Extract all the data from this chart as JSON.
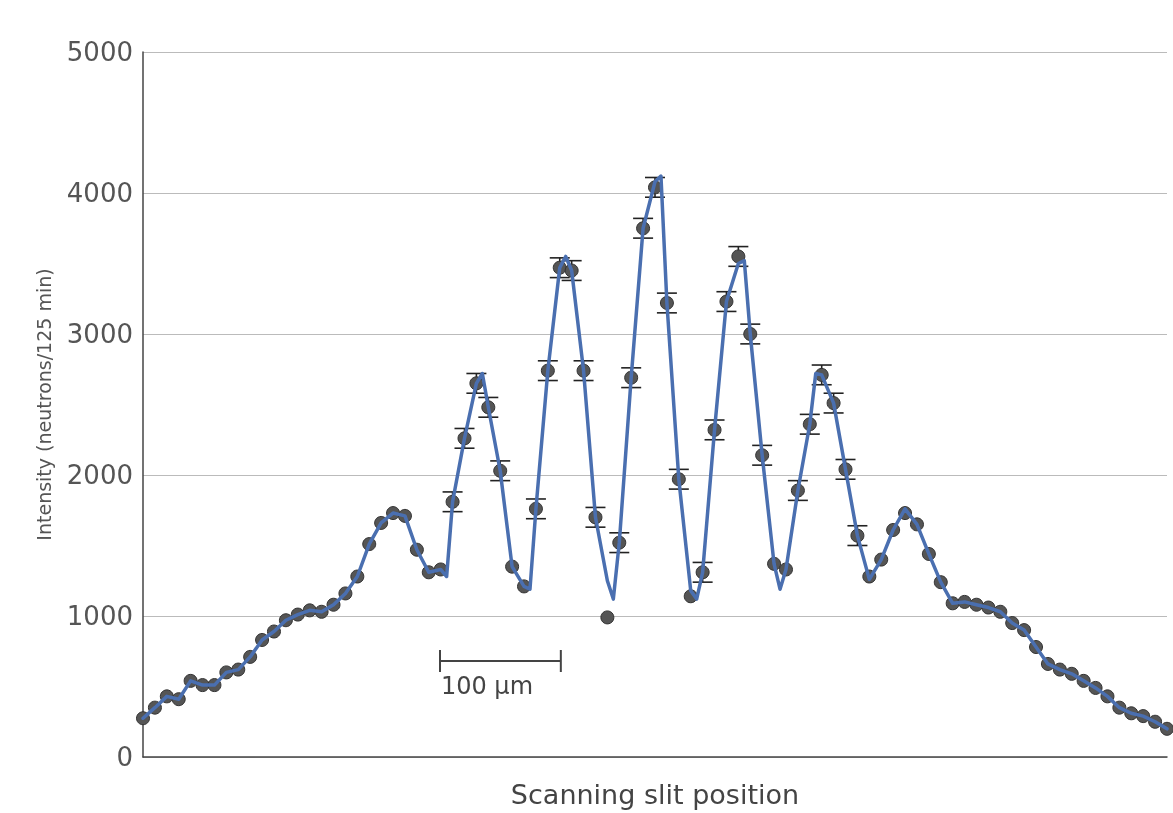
{
  "chart_data": {
    "type": "line",
    "xlabel": "Scanning slit position",
    "ylabel": "Intensity (neutrons/125 min)",
    "annotations": [
      "100 μm"
    ],
    "categories": [
      null,
      null,
      null,
      null,
      null,
      null,
      null,
      null,
      null,
      null,
      null,
      null,
      null,
      null,
      null,
      null,
      null,
      null,
      null,
      null,
      null,
      null,
      null,
      null,
      null,
      null,
      null,
      null,
      null,
      null,
      null,
      null,
      null,
      null,
      null,
      null,
      null,
      null,
      null,
      null,
      null,
      null,
      null,
      null,
      null,
      null,
      null,
      null,
      null,
      null,
      null,
      null,
      null,
      null,
      null,
      null,
      null,
      null,
      null,
      null,
      null,
      null,
      null,
      null,
      null,
      null,
      null,
      null,
      null,
      null,
      null,
      null,
      null,
      null,
      null,
      null,
      null,
      null,
      null,
      null,
      null,
      null,
      null,
      null,
      null,
      null,
      null,
      null,
      null,
      null,
      null,
      null,
      null,
      null,
      null,
      null,
      null,
      null,
      null,
      null,
      null,
      null,
      null,
      null,
      null,
      null,
      null,
      null,
      null,
      null,
      null,
      null,
      null,
      null,
      null,
      null,
      null,
      null,
      null,
      null,
      null,
      null,
      null,
      null,
      null,
      null,
      null,
      null,
      null,
      null,
      null,
      null,
      null,
      null,
      null,
      null,
      null,
      null,
      null,
      null,
      null,
      null,
      null,
      null,
      null,
      null,
      null,
      null,
      null,
      null,
      null,
      null,
      null,
      null,
      null,
      null,
      null,
      null,
      null,
      null,
      null,
      null,
      null,
      null,
      null,
      null,
      null,
      null,
      null,
      null,
      null,
      null,
      null
    ],
    "ylim": [
      0,
      5000
    ],
    "yticks": [
      0,
      1000,
      2000,
      3000,
      4000,
      5000
    ],
    "tick_labels": "y",
    "grid": "y",
    "series": [
      {
        "type": "scatter",
        "color": "#555555",
        "marker": "circle",
        "values": [
          275,
          null,
          350,
          null,
          430,
          null,
          410,
          null,
          540,
          null,
          510,
          null,
          510,
          null,
          600,
          null,
          620,
          null,
          710,
          null,
          830,
          null,
          890,
          null,
          970,
          null,
          1010,
          null,
          1040,
          null,
          1030,
          null,
          1080,
          null,
          1160,
          null,
          1280,
          null,
          1510,
          null,
          1660,
          null,
          1730,
          null,
          1710,
          null,
          1470,
          null,
          1310,
          null,
          1330,
          null,
          1810,
          null,
          2260,
          null,
          2650,
          null,
          2480,
          null,
          2030,
          null,
          1350,
          null,
          1210,
          null,
          1760,
          null,
          2740,
          null,
          3470,
          null,
          3450,
          null,
          2740,
          null,
          1700,
          null,
          990,
          null,
          1520,
          null,
          2690,
          null,
          3750,
          null,
          4040,
          null,
          3220,
          null,
          1970,
          null,
          1140,
          null,
          1310,
          null,
          2320,
          null,
          3230,
          null,
          3550,
          null,
          3000,
          null,
          2140,
          null,
          1370,
          null,
          1330,
          null,
          1890,
          null,
          2360,
          null,
          2710,
          null,
          2510,
          null,
          2040,
          null,
          1570,
          null,
          1280,
          null,
          1400,
          null,
          1610,
          null,
          1730,
          null,
          1650,
          null,
          1440,
          null,
          1240,
          null,
          1090,
          null,
          1100,
          null,
          1080,
          null,
          1060,
          null,
          1030,
          null,
          950,
          null,
          900,
          null,
          780,
          null,
          660,
          null,
          620,
          null,
          590,
          null,
          540,
          null,
          490,
          null,
          430,
          null,
          350,
          null,
          310,
          null,
          290,
          null,
          250,
          null,
          200
        ],
        "errors": [
          null,
          null,
          null,
          null,
          null,
          null,
          null,
          null,
          null,
          null,
          null,
          null,
          null,
          null,
          null,
          null,
          null,
          null,
          null,
          null,
          null,
          null,
          null,
          null,
          null,
          null,
          null,
          null,
          null,
          null,
          null,
          null,
          null,
          null,
          null,
          null,
          null,
          null,
          null,
          null,
          null,
          null,
          null,
          null,
          null,
          null,
          null,
          null,
          null,
          null,
          null,
          null,
          70,
          null,
          70,
          null,
          70,
          null,
          70,
          null,
          70,
          null,
          null,
          null,
          null,
          null,
          70,
          null,
          70,
          null,
          70,
          null,
          70,
          null,
          70,
          null,
          70,
          null,
          null,
          null,
          70,
          null,
          70,
          null,
          70,
          null,
          70,
          null,
          70,
          null,
          70,
          null,
          null,
          null,
          70,
          null,
          70,
          null,
          70,
          null,
          70,
          null,
          70,
          null,
          70,
          null,
          null,
          null,
          null,
          null,
          70,
          null,
          70,
          null,
          70,
          null,
          70,
          null,
          70,
          null,
          70,
          null,
          null,
          null,
          null,
          null,
          null,
          null,
          null,
          null,
          null,
          null,
          null,
          null,
          null,
          null,
          null,
          null,
          null,
          null,
          null,
          null,
          null,
          null,
          null,
          null,
          null,
          null,
          null,
          null,
          null,
          null,
          null,
          null,
          null,
          null,
          null,
          null,
          null,
          null,
          null,
          null,
          null,
          null,
          null,
          null,
          null,
          null,
          null,
          null,
          null,
          null,
          null
        ]
      },
      {
        "color": "#4a6fb0",
        "marker": "none",
        "line_style": "solid",
        "values": [
          275,
          null,
          350,
          null,
          430,
          null,
          410,
          null,
          540,
          null,
          510,
          null,
          510,
          null,
          600,
          null,
          620,
          null,
          710,
          null,
          830,
          null,
          890,
          null,
          970,
          null,
          1010,
          null,
          1040,
          null,
          1030,
          null,
          1080,
          null,
          1160,
          null,
          1280,
          null,
          1510,
          null,
          1660,
          null,
          1730,
          null,
          1710,
          null,
          1470,
          null,
          1310,
          null,
          1330,
          1280,
          1810,
          null,
          2260,
          null,
          2650,
          2720,
          2480,
          null,
          2030,
          null,
          1350,
          null,
          1210,
          1190,
          1760,
          null,
          2740,
          null,
          3470,
          3550,
          3450,
          null,
          2740,
          null,
          1700,
          null,
          1250,
          1120,
          1520,
          null,
          2690,
          null,
          3750,
          null,
          4080,
          4120,
          3220,
          null,
          1970,
          null,
          1180,
          1120,
          1310,
          null,
          2320,
          null,
          3230,
          null,
          3500,
          3520,
          3000,
          null,
          2140,
          null,
          1370,
          1190,
          1330,
          null,
          1890,
          null,
          2360,
          2720,
          2710,
          null,
          2510,
          null,
          2040,
          null,
          1570,
          null,
          1260,
          null,
          1400,
          null,
          1610,
          null,
          1760,
          null,
          1650,
          null,
          1440,
          null,
          1240,
          null,
          1090,
          null,
          1100,
          null,
          1080,
          null,
          1060,
          null,
          1030,
          null,
          950,
          null,
          900,
          null,
          780,
          null,
          660,
          null,
          620,
          null,
          590,
          null,
          540,
          null,
          490,
          null,
          430,
          null,
          350,
          null,
          310,
          null,
          290,
          null,
          250,
          null,
          200
        ]
      }
    ]
  }
}
